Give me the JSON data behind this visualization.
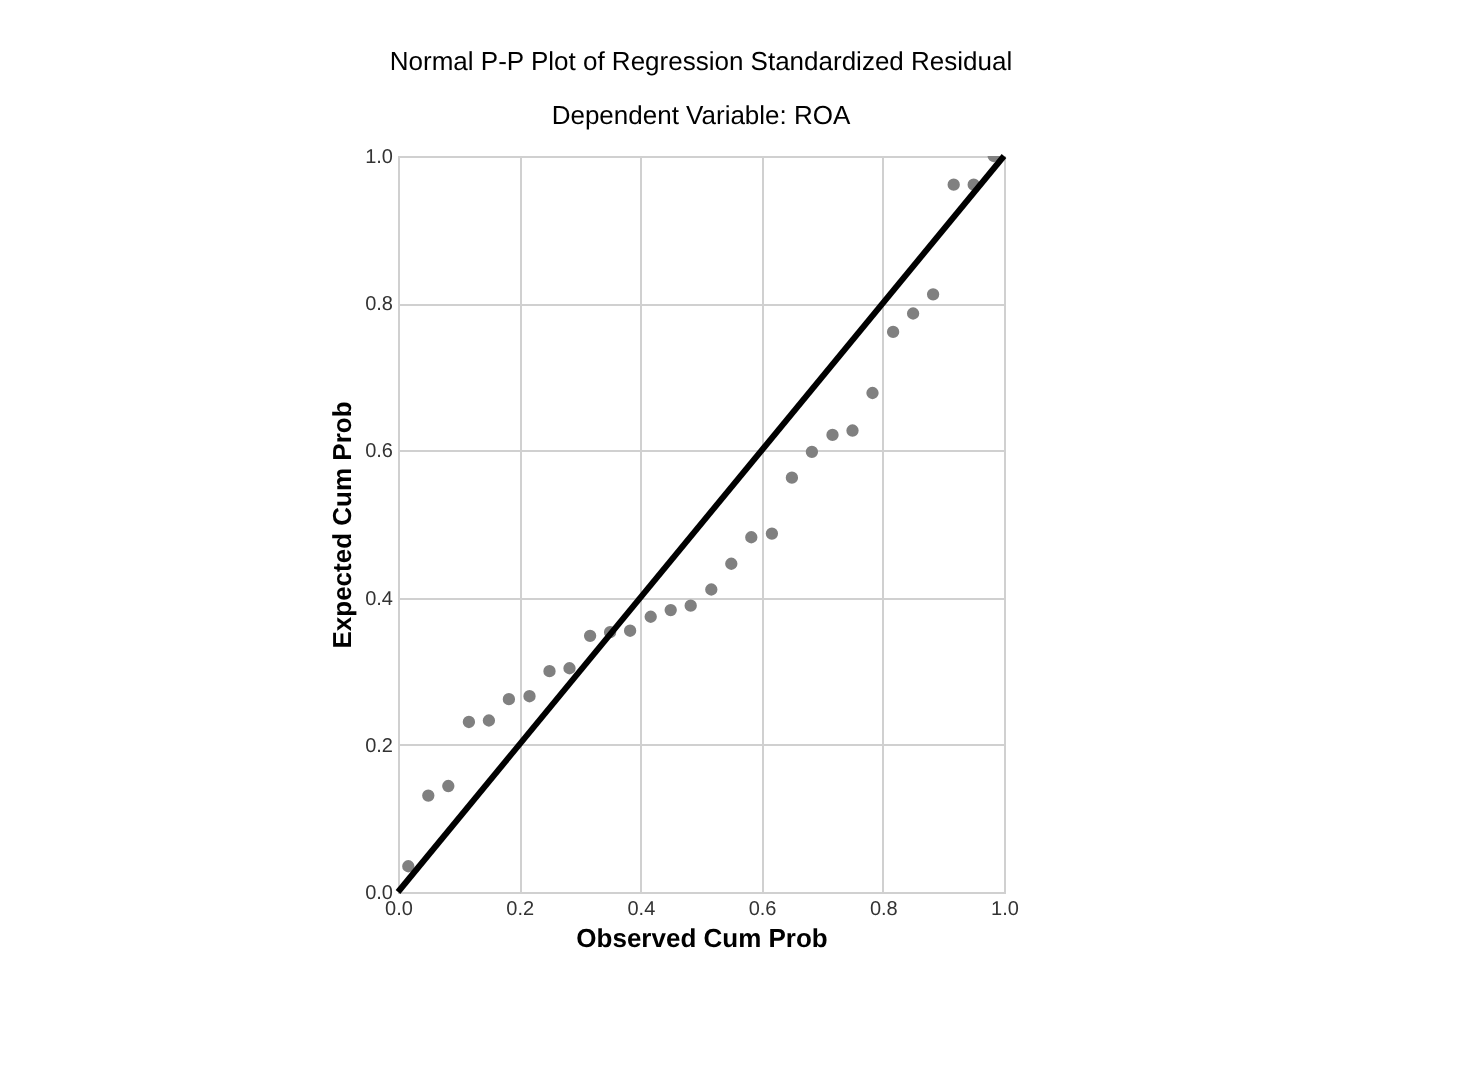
{
  "chart_data": {
    "type": "scatter",
    "title": "Normal P-P Plot of Regression Standardized Residual",
    "subtitle": "Dependent Variable: ROA",
    "xlabel": "Observed Cum Prob",
    "ylabel": "Expected Cum Prob",
    "xlim": [
      0,
      1
    ],
    "ylim": [
      0,
      1
    ],
    "xticks": [
      {
        "value": 0,
        "label": "0.0"
      },
      {
        "value": 0.2,
        "label": "0.2"
      },
      {
        "value": 0.4,
        "label": "0.4"
      },
      {
        "value": 0.6,
        "label": "0.6"
      },
      {
        "value": 0.8,
        "label": "0.8"
      },
      {
        "value": 1,
        "label": "1.0"
      }
    ],
    "yticks": [
      {
        "value": 0,
        "label": "0.0"
      },
      {
        "value": 0.2,
        "label": "0.2"
      },
      {
        "value": 0.4,
        "label": "0.4"
      },
      {
        "value": 0.6,
        "label": "0.6"
      },
      {
        "value": 0.8,
        "label": "0.8"
      },
      {
        "value": 1,
        "label": "1.0"
      }
    ],
    "grid": true,
    "series": [
      {
        "marker": "circle",
        "color": "#808080",
        "x": [
          0.017,
          0.05,
          0.083,
          0.117,
          0.15,
          0.183,
          0.217,
          0.25,
          0.283,
          0.317,
          0.35,
          0.383,
          0.417,
          0.45,
          0.483,
          0.517,
          0.55,
          0.583,
          0.617,
          0.65,
          0.683,
          0.717,
          0.75,
          0.783,
          0.817,
          0.85,
          0.883,
          0.917,
          0.95,
          0.983
        ],
        "values": [
          0.035,
          0.131,
          0.144,
          0.231,
          0.233,
          0.262,
          0.266,
          0.3,
          0.304,
          0.348,
          0.353,
          0.355,
          0.374,
          0.383,
          0.389,
          0.411,
          0.446,
          0.482,
          0.487,
          0.563,
          0.598,
          0.621,
          0.627,
          0.678,
          0.761,
          0.786,
          0.812,
          0.961,
          0.961,
          1.0
        ]
      },
      {
        "type": "line",
        "color": "#000000",
        "x": [
          0,
          1
        ],
        "values": [
          0,
          1
        ],
        "marker": "none",
        "line_style": "solid"
      }
    ]
  }
}
